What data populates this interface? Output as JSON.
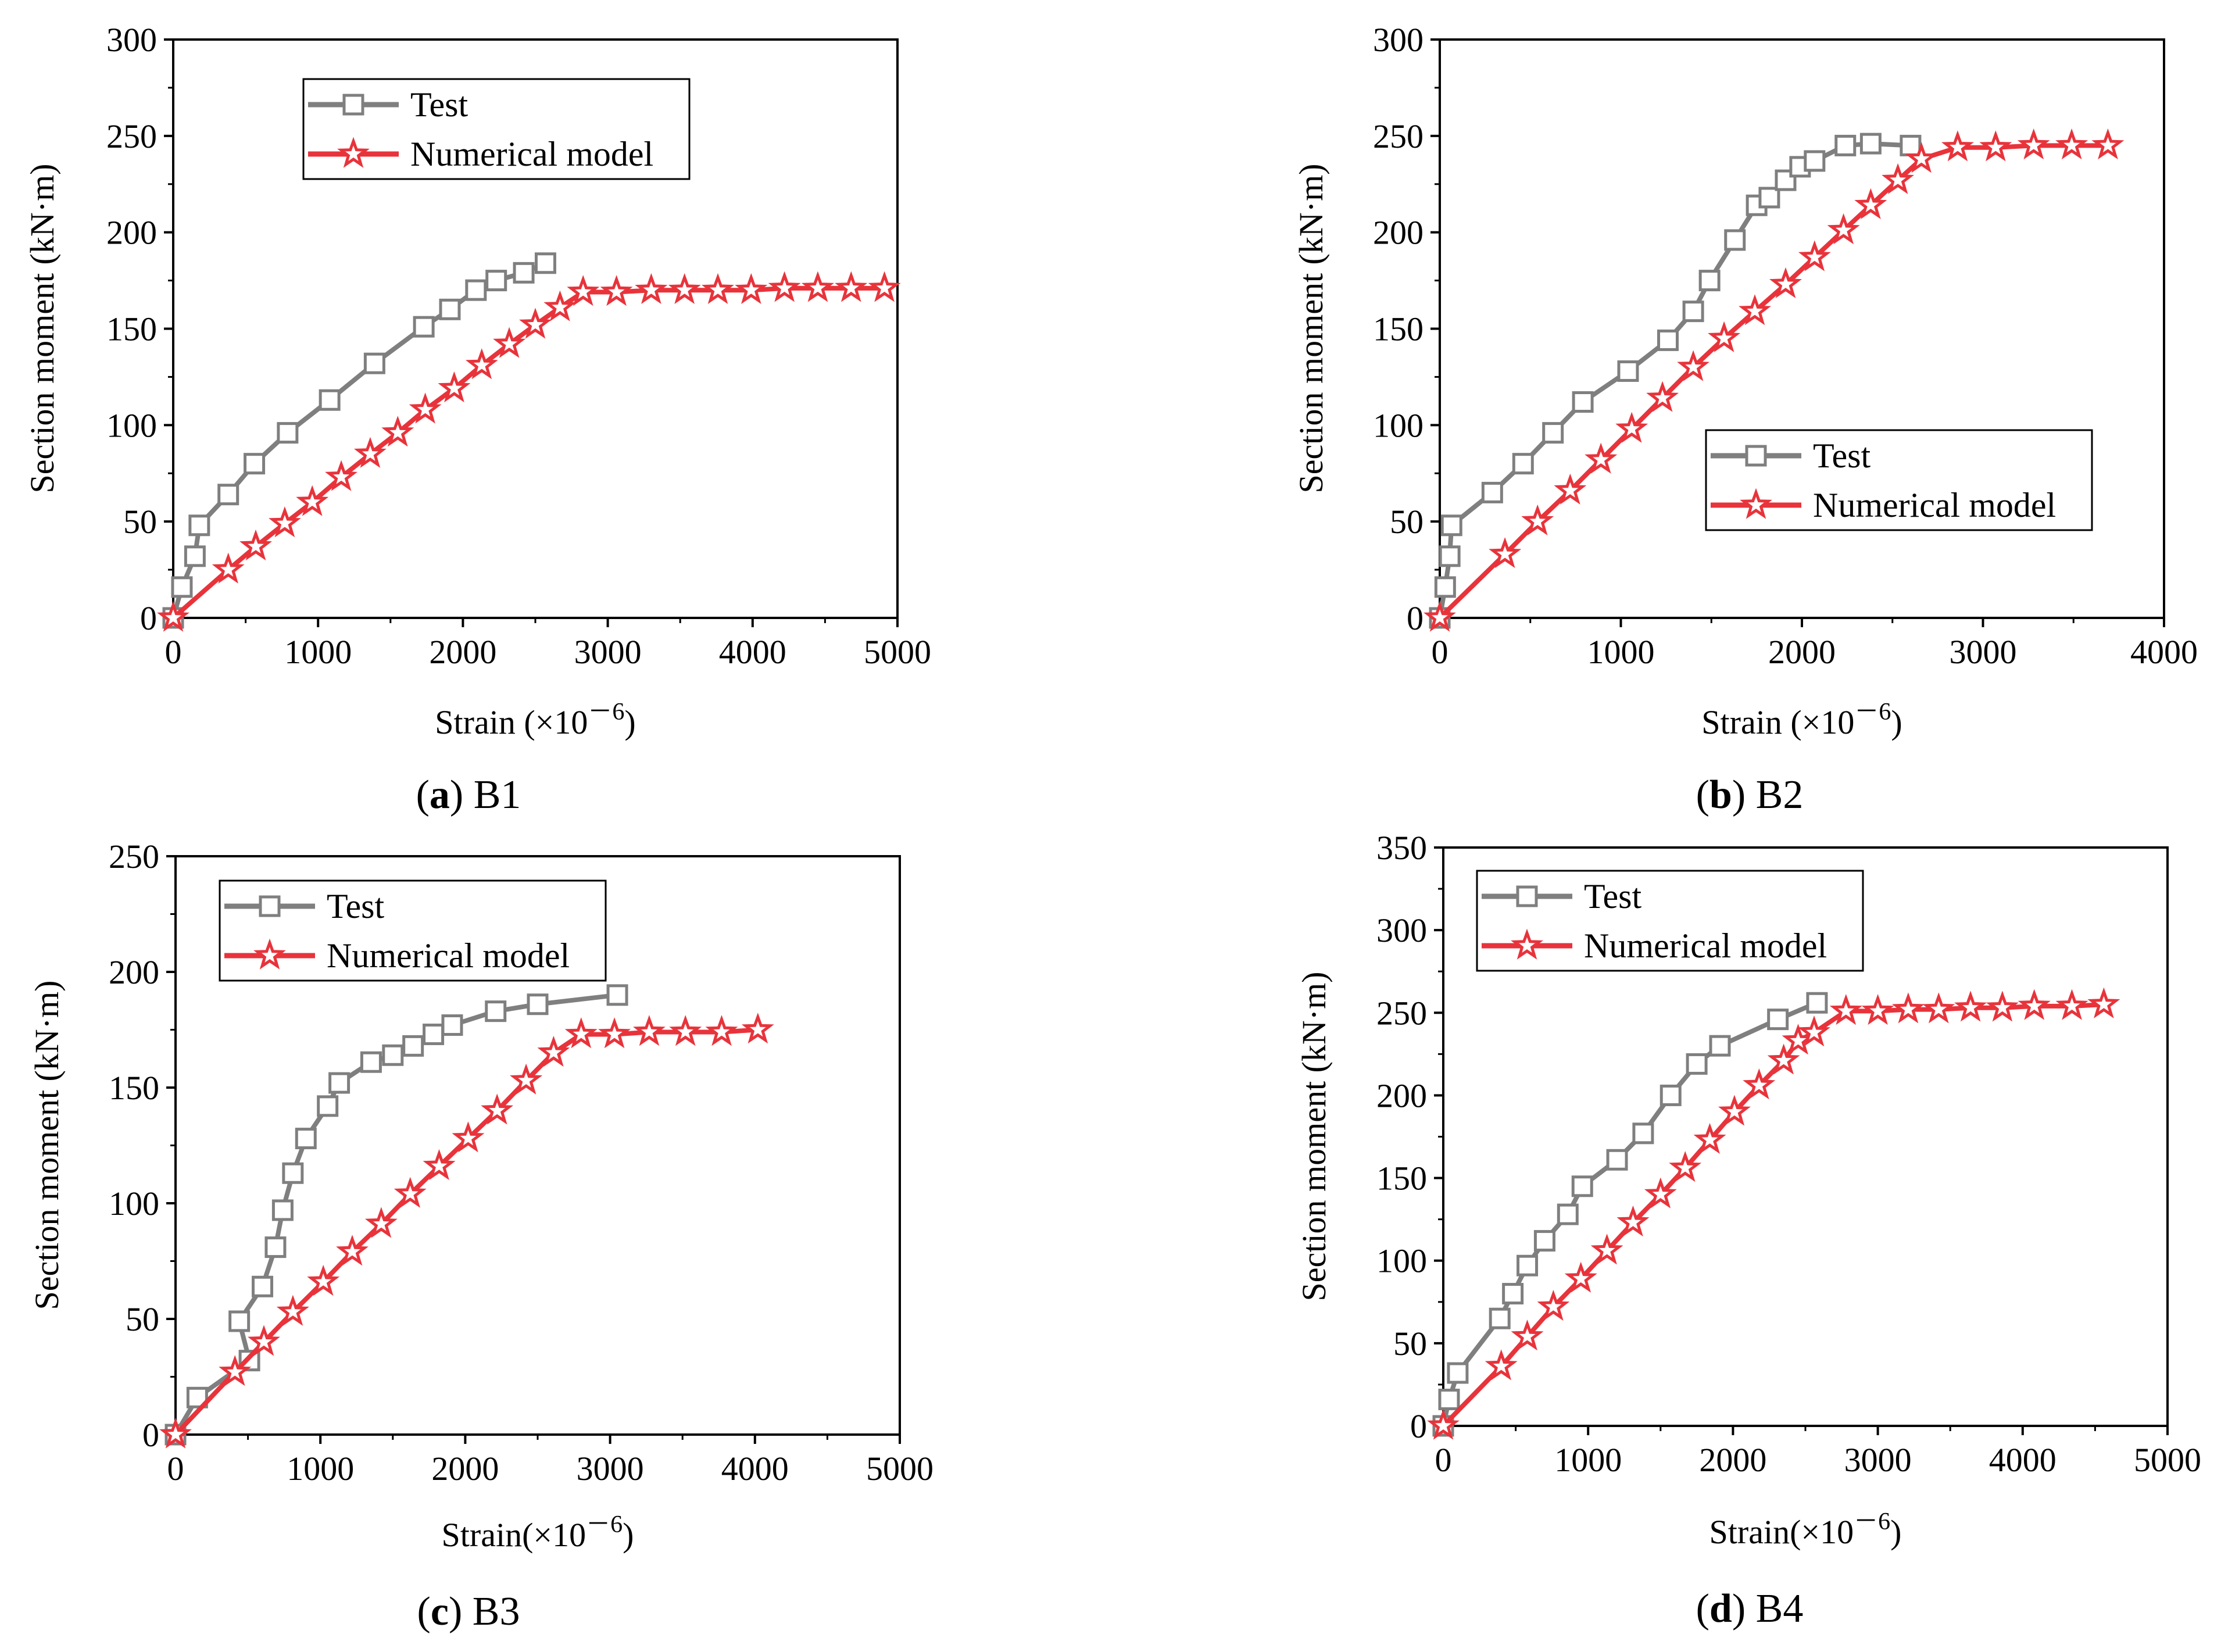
{
  "figure": {
    "legend_test": "Test",
    "legend_model": "Numerical model",
    "series_colors": {
      "test": "#7f7f7f",
      "model": "#e8333b"
    }
  },
  "chart_data": [
    {
      "id": "a",
      "type": "line",
      "caption_letter": "a",
      "caption_text": "B1",
      "ylabel": "Section moment (kN·m)",
      "xlabel_main": "Strain (×10",
      "xlabel_exp": "－6",
      "xlabel_close": ")",
      "xlim": [
        0,
        5000
      ],
      "ylim": [
        0,
        300
      ],
      "xticks": [
        0,
        1000,
        2000,
        3000,
        4000,
        5000
      ],
      "yticks": [
        0,
        50,
        100,
        150,
        200,
        250,
        300
      ],
      "legend_position": "top-left",
      "series": [
        {
          "name": "Test",
          "marker": "square",
          "x": [
            0,
            60,
            150,
            180,
            380,
            560,
            790,
            1080,
            1390,
            1730,
            1910,
            2090,
            2230,
            2420,
            2570
          ],
          "y": [
            0,
            16,
            32,
            48,
            64,
            80,
            96,
            113,
            132,
            151,
            160,
            170,
            175,
            179,
            184
          ]
        },
        {
          "name": "Numerical model",
          "marker": "star",
          "x": [
            0,
            380,
            570,
            770,
            960,
            1160,
            1360,
            1550,
            1740,
            1940,
            2130,
            2320,
            2500,
            2670,
            2830,
            3060,
            3300,
            3530,
            3760,
            3990,
            4220,
            4450,
            4680,
            4910
          ],
          "y": [
            0,
            25,
            37,
            49,
            60,
            73,
            85,
            96,
            108,
            119,
            131,
            142,
            152,
            161,
            169,
            169,
            170,
            170,
            170,
            170,
            171,
            171,
            171,
            171
          ]
        }
      ]
    },
    {
      "id": "b",
      "type": "line",
      "caption_letter": "b",
      "caption_text": "B2",
      "ylabel": "Section moment (kN·m)",
      "xlabel_main": "Strain (×10",
      "xlabel_exp": "－6",
      "xlabel_close": ")",
      "xlim": [
        0,
        4000
      ],
      "ylim": [
        0,
        300
      ],
      "xticks": [
        0,
        1000,
        2000,
        3000,
        4000
      ],
      "yticks": [
        0,
        50,
        100,
        150,
        200,
        250,
        300
      ],
      "legend_position": "bottom-right",
      "series": [
        {
          "name": "Test",
          "marker": "square",
          "x": [
            0,
            30,
            55,
            65,
            290,
            460,
            625,
            790,
            1040,
            1260,
            1400,
            1490,
            1630,
            1750,
            1820,
            1910,
            1990,
            2070,
            2240,
            2380,
            2600
          ],
          "y": [
            0,
            16,
            32,
            48,
            65,
            80,
            96,
            112,
            128,
            144,
            159,
            175,
            196,
            214,
            218,
            227,
            234,
            237,
            245,
            246,
            245
          ]
        },
        {
          "name": "Numerical model",
          "marker": "star",
          "x": [
            0,
            360,
            540,
            720,
            890,
            1060,
            1230,
            1400,
            1570,
            1740,
            1910,
            2070,
            2230,
            2380,
            2530,
            2660,
            2860,
            3070,
            3280,
            3490,
            3690
          ],
          "y": [
            0,
            33,
            50,
            66,
            82,
            98,
            114,
            130,
            145,
            159,
            173,
            187,
            201,
            214,
            227,
            238,
            244,
            244,
            245,
            245,
            245
          ]
        }
      ]
    },
    {
      "id": "c",
      "type": "line",
      "caption_letter": "c",
      "caption_text": "B3",
      "ylabel": "Section moment (kN·m)",
      "xlabel_main": "Strain(×10",
      "xlabel_exp": "－6",
      "xlabel_close": ")",
      "xlim": [
        0,
        5000
      ],
      "ylim": [
        0,
        250
      ],
      "xticks": [
        0,
        1000,
        2000,
        3000,
        4000,
        5000
      ],
      "yticks": [
        0,
        50,
        100,
        150,
        200,
        250
      ],
      "legend_position": "top-left",
      "series": [
        {
          "name": "Test",
          "marker": "square",
          "x": [
            0,
            150,
            510,
            440,
            600,
            690,
            740,
            810,
            900,
            1050,
            1130,
            1350,
            1500,
            1640,
            1780,
            1910,
            2210,
            2500,
            3050
          ],
          "y": [
            0,
            16,
            32,
            49,
            64,
            81,
            97,
            113,
            128,
            142,
            152,
            161,
            164,
            168,
            173,
            177,
            183,
            186,
            190
          ]
        },
        {
          "name": "Numerical model",
          "marker": "star",
          "x": [
            0,
            410,
            610,
            810,
            1020,
            1220,
            1420,
            1620,
            1820,
            2020,
            2220,
            2420,
            2610,
            2800,
            3030,
            3270,
            3520,
            3770,
            4020
          ],
          "y": [
            0,
            27,
            40,
            53,
            66,
            79,
            91,
            104,
            116,
            128,
            140,
            153,
            165,
            173,
            173,
            174,
            174,
            174,
            175
          ]
        }
      ]
    },
    {
      "id": "d",
      "type": "line",
      "caption_letter": "d",
      "caption_text": "B4",
      "ylabel": "Section moment (kN·m)",
      "xlabel_main": "Strain(×10",
      "xlabel_exp": "－6",
      "xlabel_close": ")",
      "xlim": [
        0,
        5000
      ],
      "ylim": [
        0,
        350
      ],
      "xticks": [
        0,
        1000,
        2000,
        3000,
        4000,
        5000
      ],
      "yticks": [
        0,
        50,
        100,
        150,
        200,
        250,
        300,
        350
      ],
      "legend_position": "top-left",
      "series": [
        {
          "name": "Test",
          "marker": "square",
          "x": [
            0,
            40,
            100,
            390,
            480,
            580,
            700,
            860,
            960,
            1200,
            1380,
            1570,
            1750,
            1910,
            2310,
            2580
          ],
          "y": [
            0,
            16,
            32,
            65,
            80,
            97,
            112,
            128,
            145,
            161,
            177,
            200,
            219,
            230,
            246,
            256
          ]
        },
        {
          "name": "Numerical model",
          "marker": "star",
          "x": [
            0,
            400,
            580,
            760,
            950,
            1130,
            1310,
            1500,
            1670,
            1840,
            2010,
            2180,
            2350,
            2450,
            2560,
            2780,
            3000,
            3210,
            3420,
            3640,
            3860,
            4080,
            4340,
            4560
          ],
          "y": [
            0,
            36,
            54,
            72,
            89,
            106,
            123,
            140,
            156,
            173,
            190,
            206,
            221,
            233,
            238,
            251,
            251,
            252,
            252,
            253,
            253,
            254,
            254,
            255
          ]
        }
      ]
    }
  ]
}
